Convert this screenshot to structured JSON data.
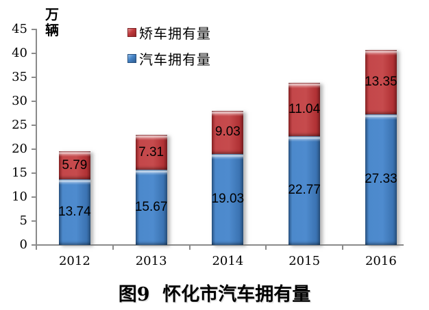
{
  "chart_data": {
    "type": "bar",
    "stacked": true,
    "title": "图9  怀化市汽车拥有量",
    "unit_label": "万辆",
    "unit_lines": [
      "万",
      "辆"
    ],
    "categories": [
      "2012",
      "2013",
      "2014",
      "2015",
      "2016"
    ],
    "series": [
      {
        "name": "汽车拥有量",
        "position": "bottom",
        "color": "#4583C6",
        "values": [
          13.74,
          15.67,
          19.03,
          22.77,
          27.33
        ]
      },
      {
        "name": "矫车拥有量",
        "position": "top",
        "color": "#BE3A3C",
        "values": [
          5.79,
          7.31,
          9.03,
          11.04,
          13.35
        ]
      }
    ],
    "data_labels_shown": true,
    "ylim": [
      0,
      45
    ],
    "ytick_step": 5,
    "yticks": [
      0,
      5,
      10,
      15,
      20,
      25,
      30,
      35,
      40,
      45
    ],
    "grid": false,
    "legend_position": "top-center",
    "legend_order": [
      "矫车拥有量",
      "汽车拥有量"
    ],
    "axis_color": "#8A8A8A",
    "text_color": "#000000",
    "background_color": "#FFFFFF"
  }
}
